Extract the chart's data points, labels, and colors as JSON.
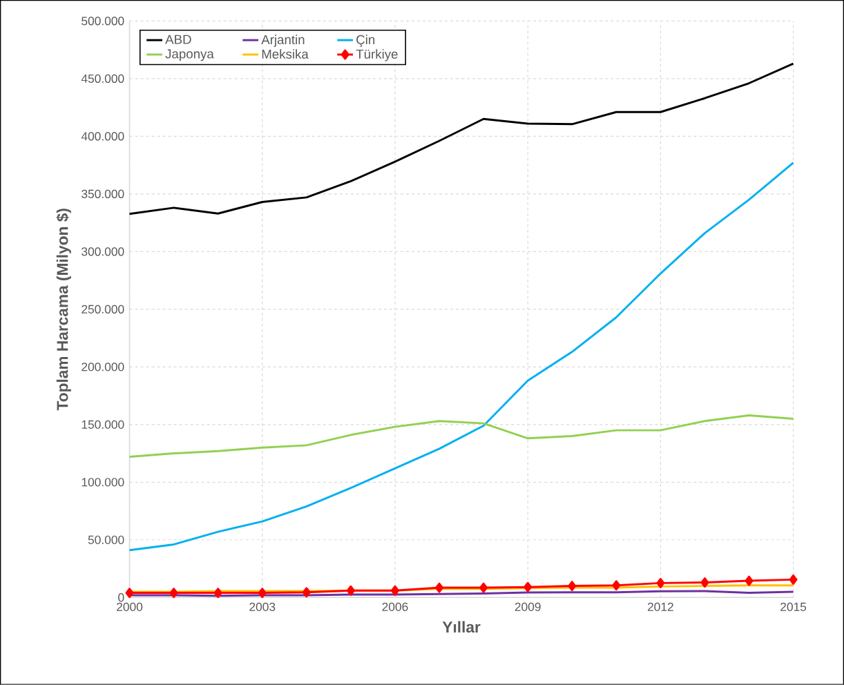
{
  "chart_data": {
    "type": "line",
    "xlabel": "Yıllar",
    "ylabel": "Toplam Harcama (Milyon $)",
    "x": [
      2000,
      2001,
      2002,
      2003,
      2004,
      2005,
      2006,
      2007,
      2008,
      2009,
      2010,
      2011,
      2012,
      2013,
      2014,
      2015
    ],
    "series": [
      {
        "name": "ABD",
        "color": "#000000",
        "values": [
          332700,
          338000,
          333000,
          343000,
          347000,
          361000,
          378000,
          396000,
          415000,
          411000,
          410500,
          421000,
          421000,
          433000,
          446000,
          463000
        ]
      },
      {
        "name": "Arjantin",
        "color": "#7030a0",
        "values": [
          2000,
          2000,
          1500,
          2000,
          2000,
          2500,
          2500,
          3000,
          3400,
          4400,
          4500,
          4500,
          5400,
          5500,
          4000,
          5000
        ]
      },
      {
        "name": "Çin",
        "color": "#00b0f0",
        "values": [
          41000,
          46000,
          57000,
          66000,
          79000,
          95000,
          112000,
          129000,
          149000,
          188000,
          213000,
          243000,
          281000,
          316000,
          345000,
          377000
        ]
      },
      {
        "name": "Japonya",
        "color": "#92d050",
        "values": [
          122000,
          125000,
          127000,
          130000,
          132000,
          141000,
          148000,
          153000,
          151000,
          138000,
          140000,
          145000,
          145000,
          153000,
          158000,
          155000
        ]
      },
      {
        "name": "Meksika",
        "color": "#ffc000",
        "values": [
          5000,
          5000,
          5500,
          5500,
          5500,
          6000,
          6000,
          7500,
          7500,
          8000,
          8500,
          8500,
          9500,
          10000,
          10500,
          10500
        ]
      },
      {
        "name": "Türkiye",
        "color": "#ff0000",
        "marker": "diamond",
        "values": [
          4000,
          4000,
          4000,
          4000,
          4500,
          6000,
          6000,
          8500,
          8500,
          9000,
          10000,
          10500,
          12500,
          13000,
          14500,
          15500
        ]
      }
    ],
    "xlim": [
      2000,
      2015
    ],
    "xticks": [
      2000,
      2003,
      2006,
      2009,
      2012,
      2015
    ],
    "ylim": [
      0,
      500000
    ],
    "yticks": [
      0,
      {
        "value": 50000,
        "label": "50.000"
      },
      {
        "value": 100000,
        "label": "100.000"
      },
      {
        "value": 150000,
        "label": "150.000"
      },
      {
        "value": 200000,
        "label": "200.000"
      },
      {
        "value": 250000,
        "label": "250.000"
      },
      {
        "value": 300000,
        "label": "300.000"
      },
      {
        "value": 350000,
        "label": "350.000"
      },
      {
        "value": 400000,
        "label": "400.000"
      },
      {
        "value": 450000,
        "label": "450.000"
      },
      {
        "value": 500000,
        "label": "500.000"
      }
    ],
    "grid": true,
    "legend": "top left",
    "line_style": "solid"
  }
}
